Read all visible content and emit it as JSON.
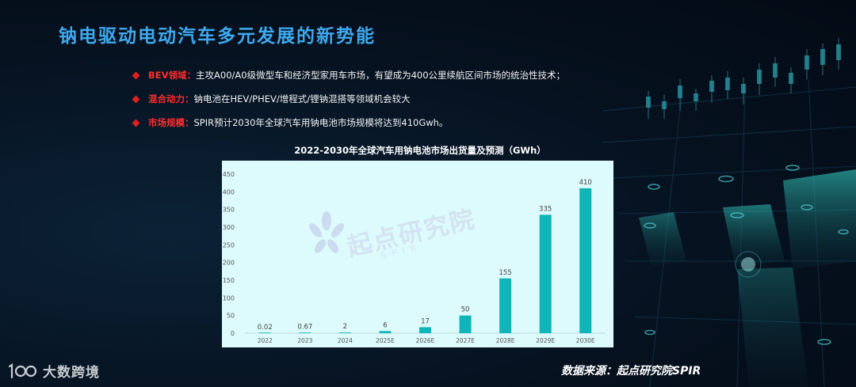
{
  "title": "钠电驱动电动汽车多元发展的新势能",
  "bullets": [
    {
      "label": "BEV领域：",
      "text": "主攻A00/A0级微型车和经济型家用车市场，有望成为400公里续航区间市场的统治性技术；"
    },
    {
      "label": "混合动力：",
      "text": "钠电池在HEV/PHEV/增程式/锂钠混搭等领域机会较大"
    },
    {
      "label": "市场规模：",
      "text": "SPIR预计2030年全球汽车用钠电池市场规模将达到410Gwh。"
    }
  ],
  "watermark": {
    "text": "起点研究院",
    "sub": "SPIR"
  },
  "logo": {
    "text": "大数跨境"
  },
  "source": "数据来源：起点研究院SPIR",
  "colors": {
    "title": "#3ea9ef",
    "bullet_label": "#ff2d2d",
    "bar": "#0fb5b8",
    "chart_bg": "#ddfbfc"
  },
  "chart_data": {
    "type": "bar",
    "title": "2022-2030年全球汽车用钠电池市场出货量及预测（GWh）",
    "categories": [
      "2022",
      "2023",
      "2024",
      "2025E",
      "2026E",
      "2027E",
      "2028E",
      "2029E",
      "2030E"
    ],
    "values": [
      0.02,
      0.67,
      2,
      6,
      17,
      50,
      155,
      335,
      410
    ],
    "value_labels": [
      "0.02",
      "0.67",
      "2",
      "6",
      "17",
      "50",
      "155",
      "335",
      "410"
    ],
    "y_ticks": [
      "0",
      "50",
      "100",
      "150",
      "200",
      "250",
      "300",
      "350",
      "400",
      "450"
    ],
    "ylim": [
      0,
      450
    ],
    "xlabel": "",
    "ylabel": "",
    "grid": false,
    "legend": "none"
  }
}
